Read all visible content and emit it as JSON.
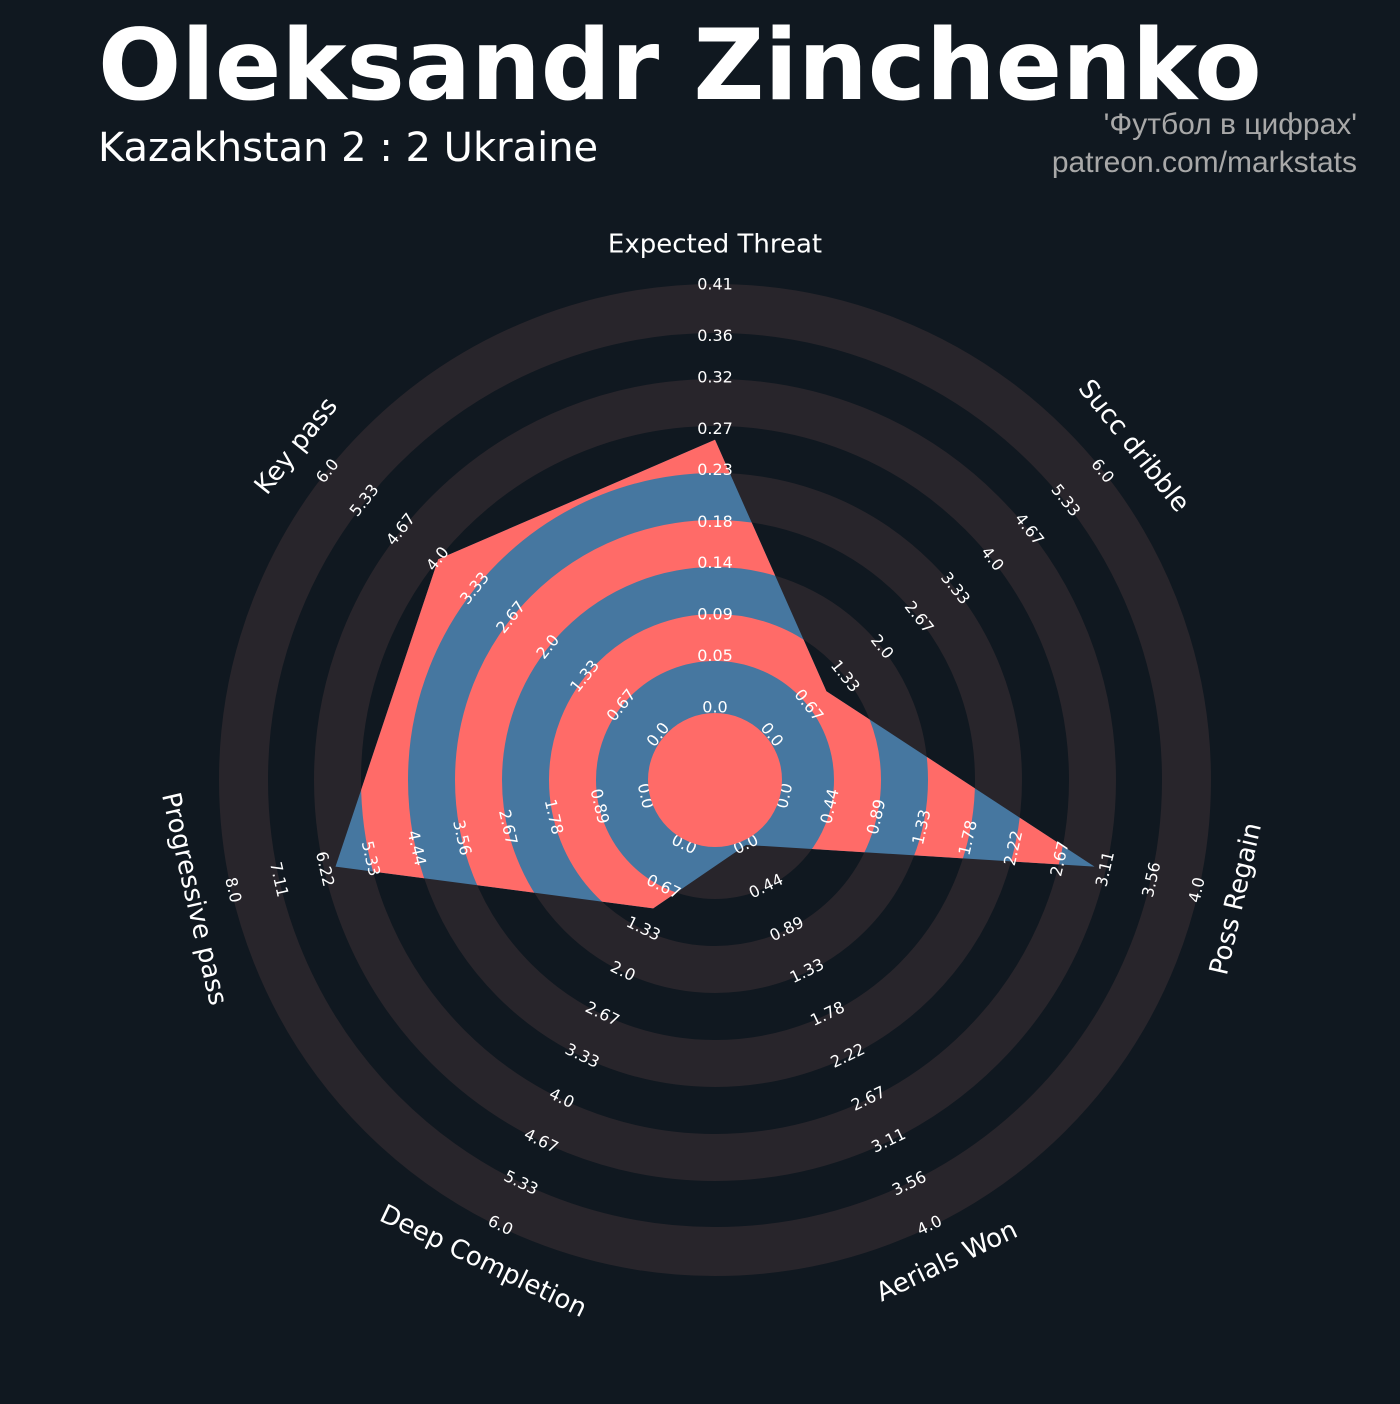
{
  "chart_data": {
    "type": "radar",
    "title": "Oleksandr Zinchenko",
    "subtitle": "Kazakhstan 2 : 2 Ukraine",
    "annotations": [
      "'Футбол в цифрах'",
      "patreon.com/markstats"
    ],
    "categories": [
      "Expected Threat",
      "Succ dribble",
      "Poss Regain",
      "Aerials Won",
      "Deep Completion",
      "Progressive pass",
      "Key pass"
    ],
    "values": [
      0.26,
      1,
      3,
      0,
      1,
      6,
      4
    ],
    "color": "#4677a0",
    "band_color": "#ff6b68",
    "ring_color": "#28252b",
    "ranges": [
      [
        0,
        0.41
      ],
      [
        0,
        6
      ],
      [
        0,
        4
      ],
      [
        0,
        4
      ],
      [
        0,
        6
      ],
      [
        0,
        8
      ],
      [
        0,
        6
      ]
    ],
    "ticks": [
      [
        {
          "value": 0,
          "label": "0.0"
        },
        0.05,
        0.09,
        0.14,
        0.18,
        0.23,
        0.27,
        0.32,
        0.36,
        0.41
      ],
      [
        {
          "value": 0,
          "label": "0.0"
        },
        0.67,
        1.33,
        {
          "value": 2,
          "label": "2.0"
        },
        2.67,
        3.33,
        {
          "value": 4,
          "label": "4.0"
        },
        4.67,
        5.33,
        {
          "value": 6,
          "label": "6.0"
        }
      ],
      [
        {
          "value": 0,
          "label": "0.0"
        },
        0.44,
        0.89,
        1.33,
        1.78,
        2.22,
        2.67,
        3.11,
        3.56,
        {
          "value": 4,
          "label": "4.0"
        }
      ],
      [
        {
          "value": 0,
          "label": "0.0"
        },
        0.44,
        0.89,
        1.33,
        1.78,
        2.22,
        2.67,
        3.11,
        3.56,
        {
          "value": 4,
          "label": "4.0"
        }
      ],
      [
        {
          "value": 0,
          "label": "0.0"
        },
        0.67,
        1.33,
        {
          "value": 2,
          "label": "2.0"
        },
        2.67,
        3.33,
        {
          "value": 4,
          "label": "4.0"
        },
        4.67,
        5.33,
        {
          "value": 6,
          "label": "6.0"
        }
      ],
      [
        {
          "value": 0,
          "label": "0.0"
        },
        0.89,
        1.78,
        2.67,
        3.56,
        4.44,
        5.33,
        6.22,
        7.11,
        {
          "value": 8,
          "label": "8.0"
        }
      ],
      [
        {
          "value": 0,
          "label": "0.0"
        },
        0.67,
        1.33,
        {
          "value": 2,
          "label": "2.0"
        },
        2.67,
        3.33,
        {
          "value": 4,
          "label": "4.0"
        },
        4.67,
        5.33,
        {
          "value": 6,
          "label": "6.0"
        }
      ]
    ]
  }
}
